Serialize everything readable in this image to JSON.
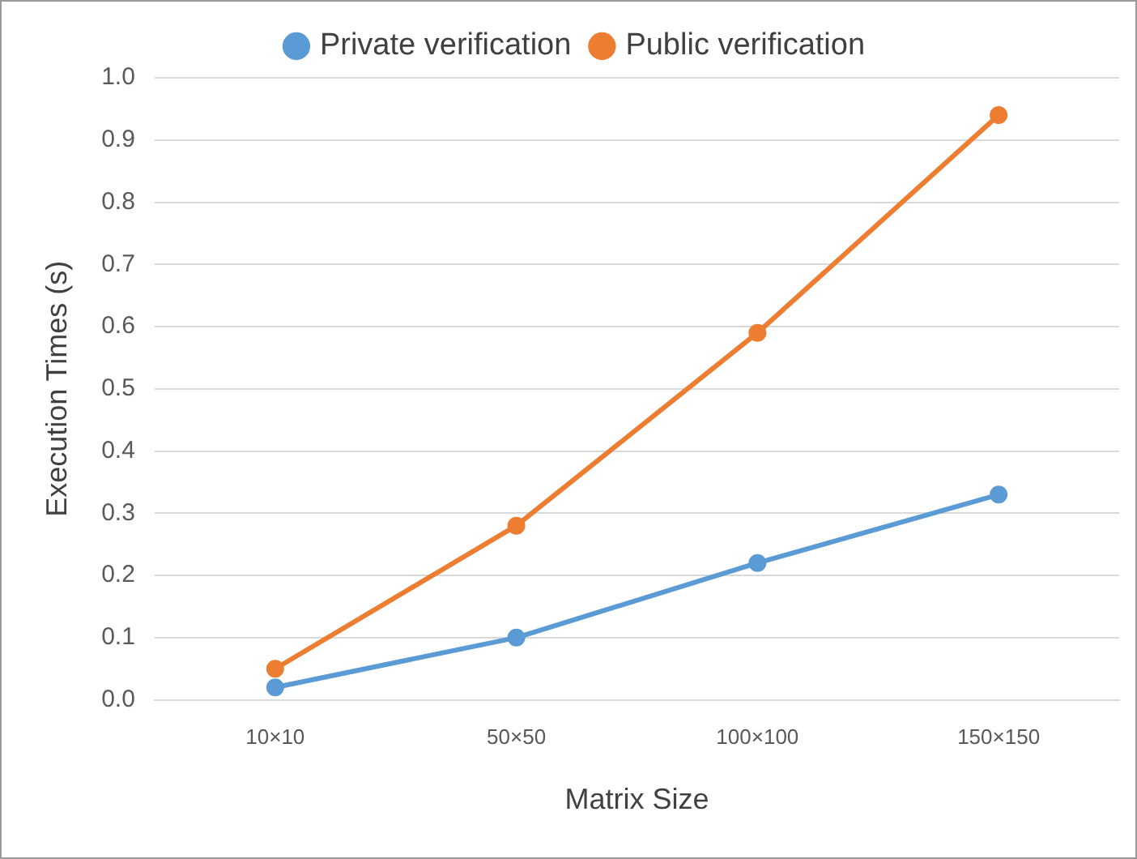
{
  "chart_data": {
    "type": "line",
    "xlabel": "Matrix Size",
    "ylabel": "Execution Times (s)",
    "categories": [
      "10×10",
      "50×50",
      "100×100",
      "150×150"
    ],
    "series": [
      {
        "name": "Private verification",
        "color": "#5b9bd5",
        "values": [
          0.02,
          0.1,
          0.22,
          0.33
        ]
      },
      {
        "name": "Public verification",
        "color": "#ed7d31",
        "values": [
          0.05,
          0.28,
          0.59,
          0.94
        ]
      }
    ],
    "ylim": [
      0,
      1
    ],
    "yticks": [
      {
        "value": 0,
        "label": "0.0"
      },
      0.1,
      0.2,
      0.3,
      0.4,
      0.5,
      0.6,
      0.7,
      0.8,
      0.9,
      {
        "value": 1,
        "label": "1.0"
      }
    ],
    "grid": "y",
    "legend": "top",
    "marker": "circle",
    "line_style": "solid"
  }
}
